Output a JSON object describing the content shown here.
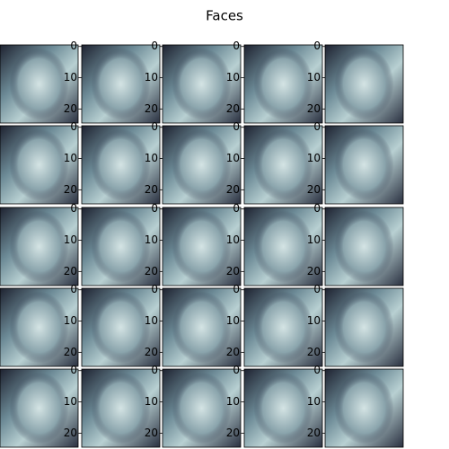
{
  "chart_data": {
    "type": "image-grid",
    "title": "Faces",
    "rows": 5,
    "cols": 5,
    "colormap": "bone",
    "ylim": [
      24.5,
      -0.5
    ],
    "yticks": [
      0,
      10,
      20
    ]
  }
}
